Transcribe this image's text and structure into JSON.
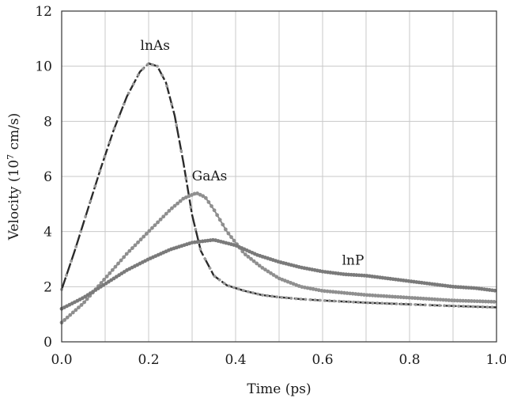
{
  "chart_data": {
    "type": "line",
    "xlabel": "Time (ps)",
    "ylabel_main": "Velocity (10",
    "ylabel_exp": "7",
    "ylabel_tail": " cm/s)",
    "xlim": [
      0.0,
      1.0
    ],
    "ylim": [
      0,
      12
    ],
    "x_ticks": [
      "0.0",
      "0.2",
      "0.4",
      "0.6",
      "0.8",
      "1.0"
    ],
    "x_tick_values": [
      0.0,
      0.2,
      0.4,
      0.6,
      0.8,
      1.0
    ],
    "y_ticks": [
      "0",
      "2",
      "4",
      "6",
      "8",
      "10",
      "12"
    ],
    "y_tick_values": [
      0,
      2,
      4,
      6,
      8,
      10,
      12
    ],
    "grid": true,
    "colors": {
      "InAs": "#2b2b2b",
      "GaAs": "#8a8a8a",
      "InP": "#707070"
    },
    "series": [
      {
        "name": "lnAs",
        "x": [
          0.0,
          0.03,
          0.06,
          0.09,
          0.12,
          0.15,
          0.18,
          0.2,
          0.22,
          0.24,
          0.26,
          0.28,
          0.3,
          0.32,
          0.35,
          0.38,
          0.42,
          0.46,
          0.5,
          0.55,
          0.6,
          0.7,
          0.8,
          0.9,
          1.0
        ],
        "y": [
          1.9,
          3.3,
          4.8,
          6.3,
          7.7,
          8.9,
          9.8,
          10.1,
          10.0,
          9.4,
          8.2,
          6.5,
          4.6,
          3.3,
          2.4,
          2.05,
          1.85,
          1.7,
          1.62,
          1.55,
          1.5,
          1.42,
          1.36,
          1.3,
          1.25
        ]
      },
      {
        "name": "GaAs",
        "x": [
          0.0,
          0.05,
          0.1,
          0.15,
          0.2,
          0.25,
          0.28,
          0.31,
          0.33,
          0.35,
          0.38,
          0.42,
          0.46,
          0.5,
          0.55,
          0.6,
          0.7,
          0.8,
          0.9,
          1.0
        ],
        "y": [
          0.7,
          1.4,
          2.3,
          3.2,
          4.0,
          4.8,
          5.2,
          5.4,
          5.25,
          4.8,
          4.0,
          3.2,
          2.7,
          2.3,
          2.0,
          1.85,
          1.7,
          1.6,
          1.5,
          1.45
        ]
      },
      {
        "name": "lnP",
        "x": [
          0.0,
          0.05,
          0.1,
          0.15,
          0.2,
          0.25,
          0.3,
          0.35,
          0.4,
          0.45,
          0.5,
          0.55,
          0.6,
          0.65,
          0.7,
          0.75,
          0.8,
          0.85,
          0.9,
          0.95,
          1.0
        ],
        "y": [
          1.2,
          1.6,
          2.1,
          2.6,
          3.0,
          3.35,
          3.6,
          3.7,
          3.5,
          3.15,
          2.9,
          2.7,
          2.55,
          2.45,
          2.4,
          2.3,
          2.2,
          2.1,
          2.0,
          1.95,
          1.85
        ]
      }
    ],
    "labels": [
      {
        "text": "lnAs",
        "x": 0.215,
        "y": 10.6
      },
      {
        "text": "GaAs",
        "x": 0.34,
        "y": 5.85
      },
      {
        "text": "lnP",
        "x": 0.67,
        "y": 2.8
      }
    ]
  }
}
